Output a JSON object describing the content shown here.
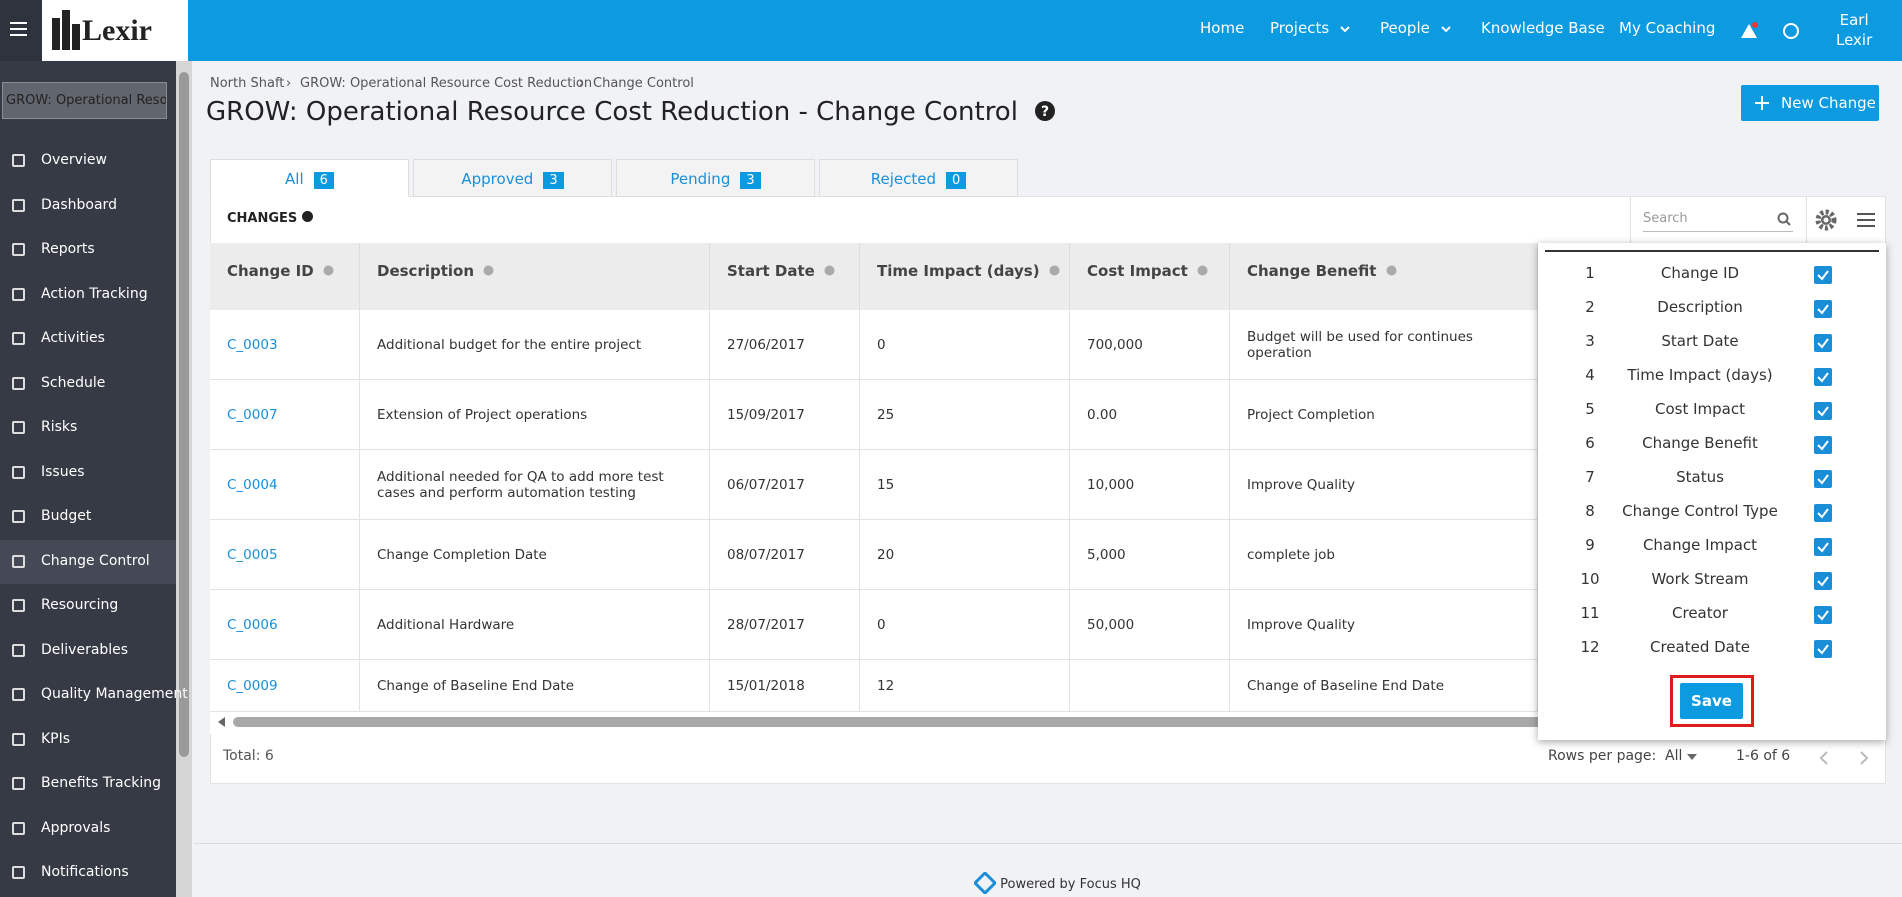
{
  "header": {
    "logo": "Lexir",
    "nav": [
      "Home",
      "Projects",
      "People",
      "Knowledge Base",
      "My Coaching"
    ],
    "user_first": "Earl",
    "user_last": "Lexir"
  },
  "sidebar": {
    "search": "GROW: Operational Resource Cost Reduction",
    "items": [
      "Overview",
      "Dashboard",
      "Reports",
      "Action Tracking",
      "Activities",
      "Schedule",
      "Risks",
      "Issues",
      "Budget",
      "Change Control",
      "Resourcing",
      "Deliverables",
      "Quality Management",
      "KPIs",
      "Benefits Tracking",
      "Approvals",
      "Notifications"
    ],
    "active": "Change Control"
  },
  "breadcrumb": [
    "North Shaft",
    "GROW: Operational Resource Cost Reduction",
    "Change Control"
  ],
  "title": "GROW: Operational Resource Cost Reduction - Change Control",
  "new_change": "New Change",
  "tabs": [
    {
      "label": "All",
      "count": 6
    },
    {
      "label": "Approved",
      "count": 3
    },
    {
      "label": "Pending",
      "count": 3
    },
    {
      "label": "Rejected",
      "count": 0
    }
  ],
  "table": {
    "label": "CHANGES",
    "search_placeholder": "Search",
    "columns": [
      "Change ID",
      "Description",
      "Start Date",
      "Time Impact (days)",
      "Cost Impact",
      "Change Benefit"
    ],
    "rows": [
      [
        "C_0003",
        "Additional budget for the entire project",
        "27/06/2017",
        "0",
        "700,000",
        "Budget will be used for continues operation"
      ],
      [
        "C_0007",
        "Extension of Project operations",
        "15/09/2017",
        "25",
        "0.00",
        "Project Completion"
      ],
      [
        "C_0004",
        "Additional needed for QA to add more test cases and perform automation testing",
        "06/07/2017",
        "15",
        "10,000",
        "Improve Quality"
      ],
      [
        "C_0005",
        "Change Completion Date",
        "08/07/2017",
        "20",
        "5,000",
        "complete job"
      ],
      [
        "C_0006",
        "Additional Hardware",
        "28/07/2017",
        "0",
        "50,000",
        "Improve Quality"
      ],
      [
        "C_0009",
        "Change of Baseline End Date",
        "15/01/2018",
        "12",
        null,
        "Change of Baseline End Date"
      ]
    ],
    "total": "Total: 6",
    "rows_per_page_label": "Rows per page:",
    "rows_per_page": "All",
    "range": "1-6 of 6"
  },
  "column_panel": {
    "items": [
      {
        "n": 1,
        "label": "Change ID"
      },
      {
        "n": 2,
        "label": "Description"
      },
      {
        "n": 3,
        "label": "Start Date"
      },
      {
        "n": 4,
        "label": "Time Impact (days)"
      },
      {
        "n": 5,
        "label": "Cost Impact"
      },
      {
        "n": 6,
        "label": "Change Benefit"
      },
      {
        "n": 7,
        "label": "Status"
      },
      {
        "n": 8,
        "label": "Change Control Type"
      },
      {
        "n": 9,
        "label": "Change Impact"
      },
      {
        "n": 10,
        "label": "Work Stream"
      },
      {
        "n": 11,
        "label": "Creator"
      },
      {
        "n": 12,
        "label": "Created Date"
      }
    ],
    "save": "Save"
  },
  "footer": "Powered by Focus HQ"
}
